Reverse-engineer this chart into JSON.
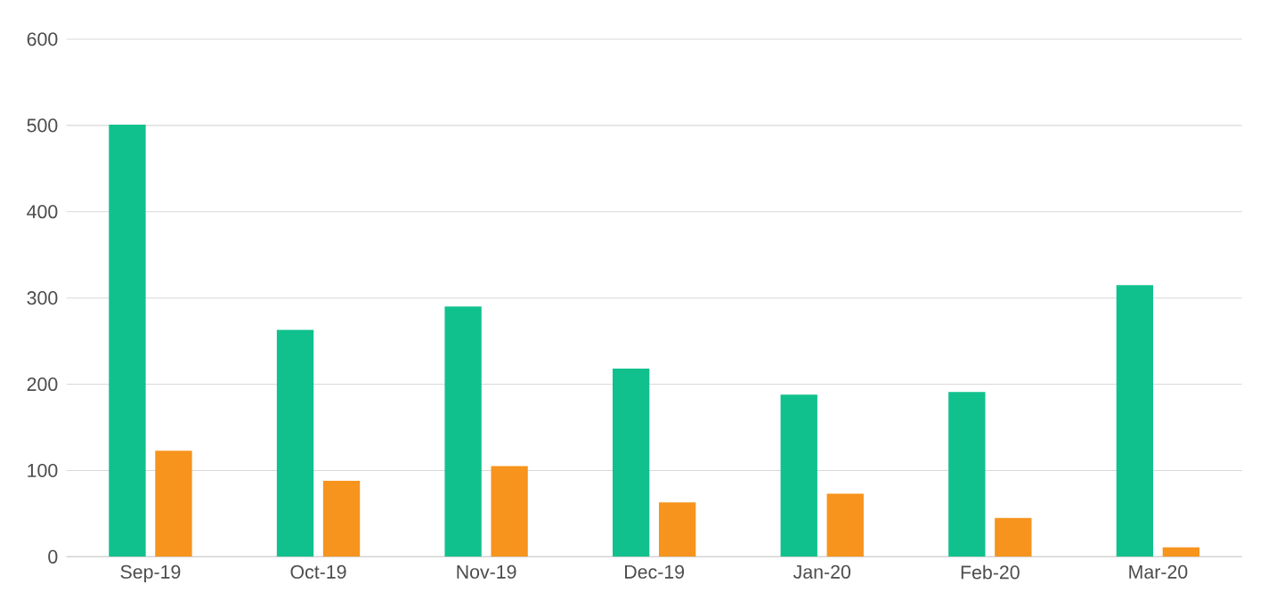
{
  "chart_data": {
    "type": "bar",
    "categories": [
      "Sep-19",
      "Oct-19",
      "Nov-19",
      "Dec-19",
      "Jan-20",
      "Feb-20",
      "Mar-20"
    ],
    "series": [
      {
        "color": "#10c18d",
        "values": [
          501,
          263,
          290,
          218,
          188,
          191,
          315
        ]
      },
      {
        "color": "#f7941d",
        "values": [
          123,
          88,
          105,
          63,
          73,
          45,
          11
        ]
      }
    ],
    "ylim": [
      0,
      600
    ],
    "yticks": [
      0,
      100,
      200,
      300,
      400,
      500,
      600
    ],
    "grid": "y"
  }
}
